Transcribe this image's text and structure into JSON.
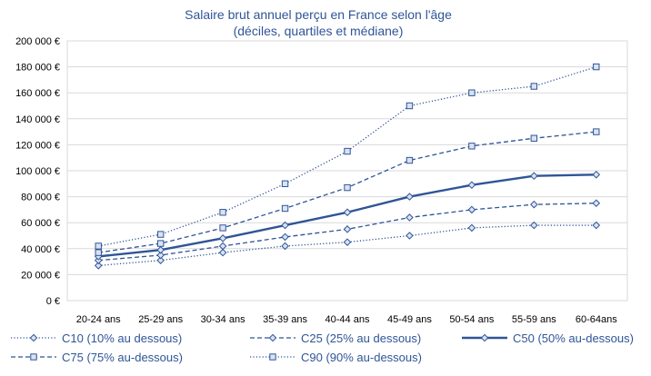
{
  "chart_data": {
    "type": "line",
    "title": "Salaire brut annuel perçu en France selon l'âge",
    "subtitle": "(déciles, quartiles et médiane)",
    "xlabel": "",
    "ylabel": "",
    "categories": [
      "20-24 ans",
      "25-29 ans",
      "30-34 ans",
      "35-39 ans",
      "40-44 ans",
      "45-49 ans",
      "50-54 ans",
      "55-59 ans",
      "60-64ans"
    ],
    "yticks": [
      "0 €",
      "20 000 €",
      "40 000 €",
      "60 000 €",
      "80 000 €",
      "100 000 €",
      "120 000 €",
      "140 000 €",
      "160 000 €",
      "180 000 €",
      "200 000 €"
    ],
    "ylim": [
      0,
      200000
    ],
    "grid": true,
    "legend_position": "bottom",
    "series": [
      {
        "name": "C10 (10% au dessous)",
        "style": "dotted",
        "marker": "diamond",
        "values": [
          27000,
          31000,
          37000,
          42000,
          45000,
          50000,
          56000,
          58000,
          58000
        ]
      },
      {
        "name": "C25 (25% au dessous)",
        "style": "dashed",
        "marker": "diamond",
        "values": [
          31000,
          35000,
          42000,
          49000,
          55000,
          64000,
          70000,
          74000,
          75000
        ]
      },
      {
        "name": "C50 (50% au-dessous)",
        "style": "solid",
        "marker": "diamond",
        "values": [
          34000,
          39000,
          48000,
          58000,
          68000,
          80000,
          89000,
          96000,
          97000
        ]
      },
      {
        "name": "C75 (75% au-dessous)",
        "style": "dashed",
        "marker": "square",
        "values": [
          37000,
          44000,
          56000,
          71000,
          87000,
          108000,
          119000,
          125000,
          130000
        ]
      },
      {
        "name": "C90 (90% au-dessous)",
        "style": "dotted",
        "marker": "square",
        "values": [
          42000,
          51000,
          68000,
          90000,
          115000,
          150000,
          160000,
          165000,
          180000
        ]
      }
    ],
    "colors": {
      "line": "#2f5597",
      "grid": "#d9d9d9",
      "title": "#2f5597",
      "marker_fill": "#dae3f3"
    }
  }
}
